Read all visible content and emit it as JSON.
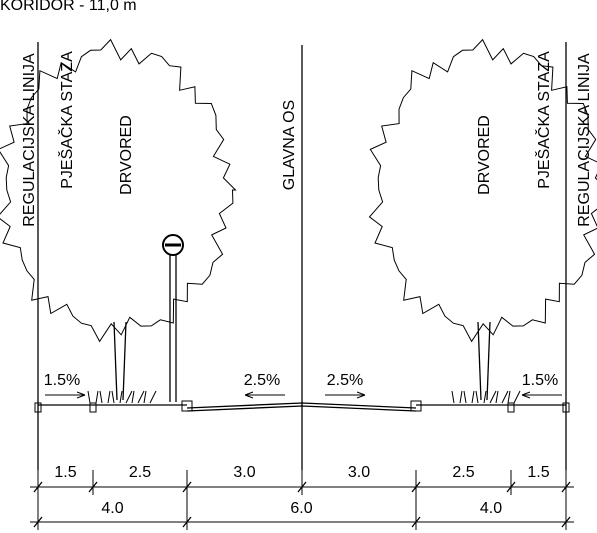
{
  "title": "KORIDOR - 11,0 m",
  "labels": [
    "REGULACIJSKA LINIJA",
    "PJEŠAČKA STAZA",
    "DRVORED",
    "GLAVNA OS",
    "DRVORED",
    "PJEŠAČKA STAZA",
    "REGULACIJSKA LINIJA"
  ],
  "slopes": [
    "1.5%",
    "2.5%",
    "2.5%",
    "1.5%"
  ],
  "dimensions": [
    "1.5",
    "2.5",
    "3.0",
    "3.0",
    "2.5",
    "1.5"
  ],
  "totals": [
    "4.0",
    "6.0",
    "4.0"
  ]
}
